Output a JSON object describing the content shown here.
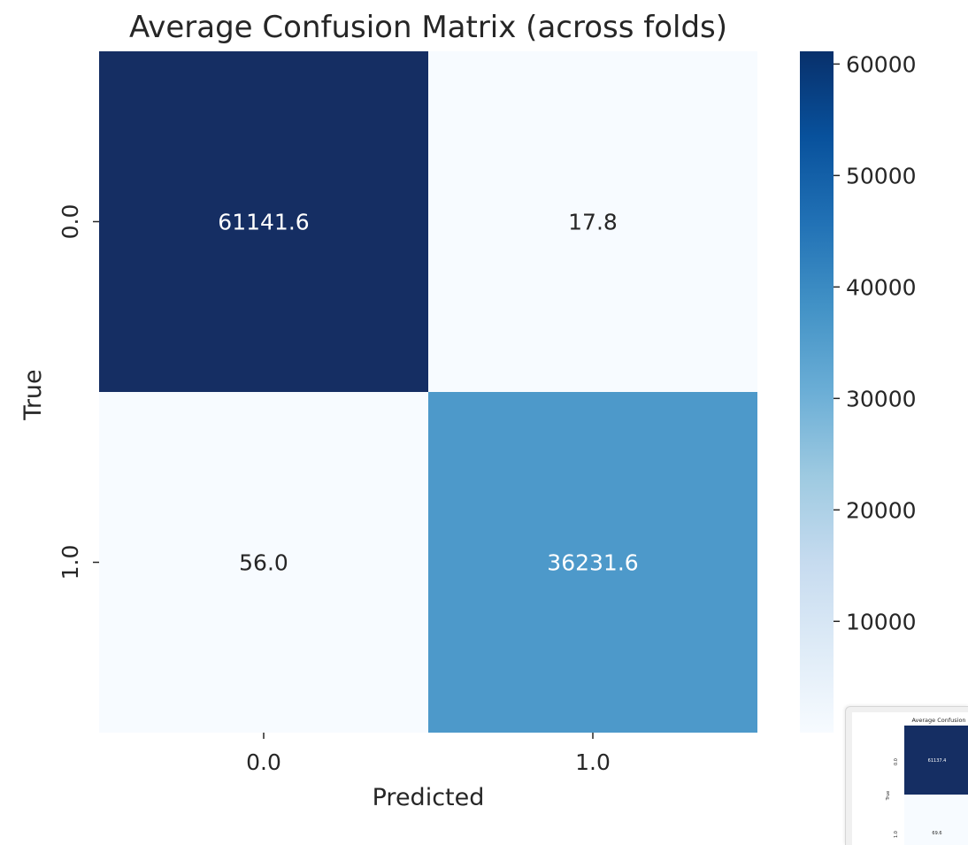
{
  "chart_data": {
    "type": "heatmap",
    "title": "Average Confusion Matrix (across folds)",
    "xlabel": "Predicted",
    "ylabel": "True",
    "x_categories": [
      "0.0",
      "1.0"
    ],
    "y_categories": [
      "0.0",
      "1.0"
    ],
    "values": [
      [
        61141.6,
        17.8
      ],
      [
        56.0,
        36231.6
      ]
    ],
    "cell_labels": [
      [
        "61141.6",
        "17.8"
      ],
      [
        "56.0",
        "36231.6"
      ]
    ],
    "colormap": "Blues",
    "vmin": 17.8,
    "vmax": 61141.6,
    "colorbar_ticks": [
      10000,
      20000,
      30000,
      40000,
      50000,
      60000
    ]
  },
  "colors": {
    "colormap_stops": [
      "#f7fbff",
      "#deebf7",
      "#c6dbef",
      "#9ecae1",
      "#6baed6",
      "#4292c6",
      "#2171b5",
      "#08519c",
      "#08306b"
    ],
    "dark_cell": "#152e63",
    "light_text": "#ffffff",
    "dark_text": "#262626"
  },
  "thumbnail": {
    "title": "Average Confusion",
    "ylabel": "True",
    "y_categories": [
      "0.0",
      "1.0"
    ],
    "cell_labels": [
      "61137.4",
      "69.6"
    ]
  }
}
